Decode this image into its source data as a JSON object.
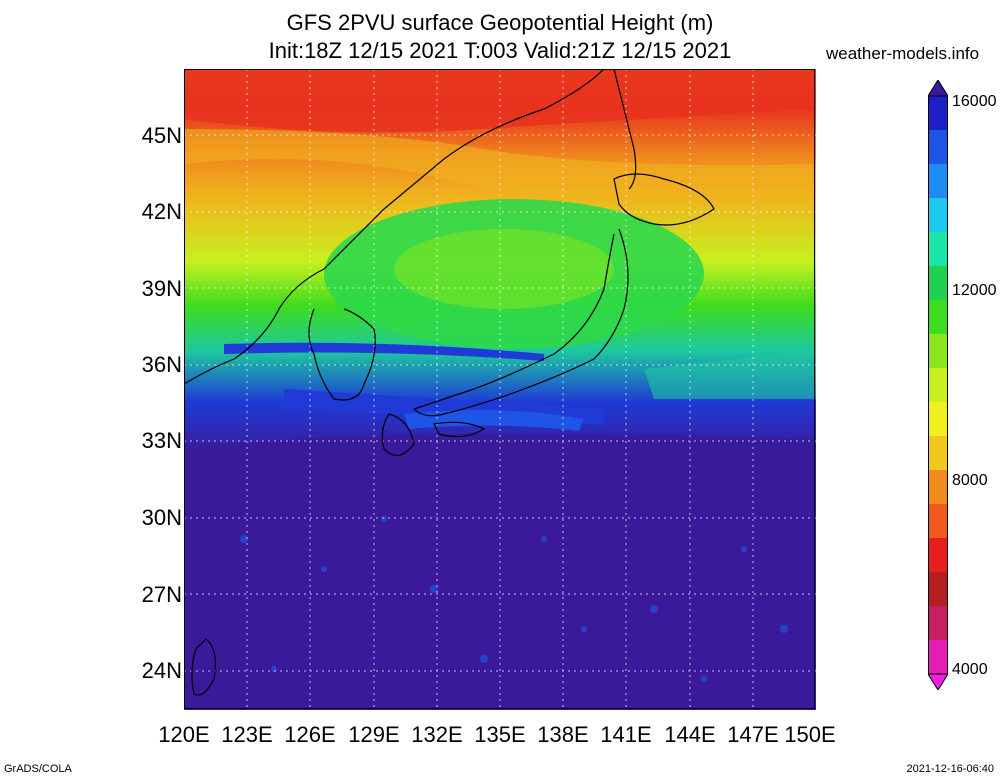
{
  "title_line1": "GFS 2PVU surface Geopotential Height (m)",
  "title_line2": "Init:18Z 12/15 2021 T:003 Valid:21Z 12/15 2021",
  "credit": "weather-models.info",
  "footer_left": "GrADS/COLA",
  "footer_right": "2021-12-16-06:40",
  "lat_labels": [
    "45N",
    "42N",
    "39N",
    "36N",
    "33N",
    "30N",
    "27N",
    "24N"
  ],
  "lon_labels": [
    "120E",
    "123E",
    "126E",
    "129E",
    "132E",
    "135E",
    "138E",
    "141E",
    "144E",
    "147E",
    "150E"
  ],
  "colorbar": {
    "labels": [
      "16000",
      "12000",
      "8000",
      "4000"
    ],
    "colors": [
      "#3a1a9a",
      "#1f1fc8",
      "#1e55e6",
      "#1c8cf0",
      "#1cc8f0",
      "#19e6a8",
      "#1ed250",
      "#3cdc1e",
      "#8ce61e",
      "#c8f01e",
      "#f0f01e",
      "#f0c81e",
      "#f08c1e",
      "#f05a1e",
      "#e61e1e",
      "#b41e1e",
      "#c81e64",
      "#e61eb4",
      "#f01ee6"
    ]
  },
  "map": {
    "domain": {
      "lon": [
        120,
        150
      ],
      "lat": [
        22.5,
        47.5
      ]
    },
    "colors": {
      "ocean_deep": "#3a1a9a",
      "blue": "#1f1fc8",
      "green": "#2ed84a",
      "yellow": "#e8f020",
      "orange": "#f08a1e",
      "red": "#e8321e",
      "coast": "#000000"
    }
  }
}
